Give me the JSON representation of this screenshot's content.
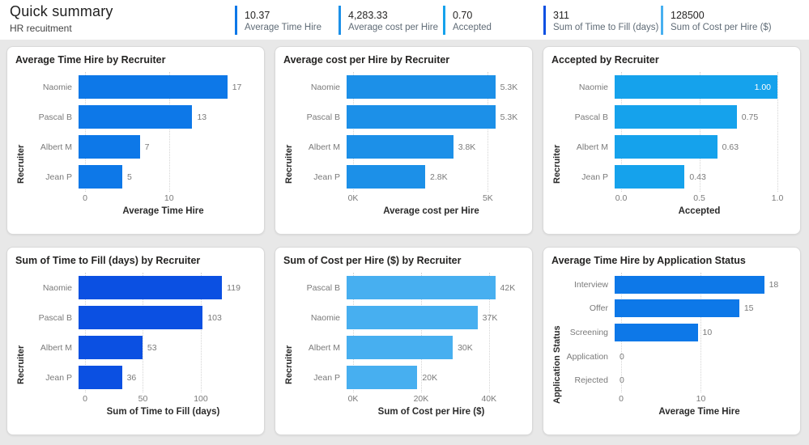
{
  "header": {
    "title": "Quick summary",
    "subtitle": "HR recuitment"
  },
  "kpis": [
    {
      "value": "10.37",
      "label": "Average Time Hire",
      "accent": "#0d78e8"
    },
    {
      "value": "4,283.33",
      "label": "Average cost per Hire",
      "accent": "#1c90e8"
    },
    {
      "value": "0.70",
      "label": "Accepted",
      "accent": "#15a2ec"
    },
    {
      "value": "311",
      "label": "Sum of Time to Fill (days)",
      "accent": "#0b50e2"
    },
    {
      "value": "128500",
      "label": "Sum of Cost per Hire ($)",
      "accent": "#47aff0"
    }
  ],
  "chart_data": [
    {
      "type": "bar",
      "orientation": "horizontal",
      "title": "Average Time Hire by Recruiter",
      "ylabel": "Recruiter",
      "xlabel": "Average Time Hire",
      "categories": [
        "Naomie",
        "Pascal B",
        "Albert M",
        "Jean P"
      ],
      "values": [
        17,
        13,
        7,
        5
      ],
      "labels": [
        "17",
        "13",
        "7",
        "5"
      ],
      "inside_labels": [],
      "axis_max": 18.6,
      "ticks": [
        {
          "value": 0,
          "label": "0"
        },
        {
          "value": 10,
          "label": "10"
        }
      ],
      "color": "#0d78e8",
      "grid": true,
      "legend": "none"
    },
    {
      "type": "bar",
      "orientation": "horizontal",
      "title": "Average cost per Hire by Recruiter",
      "ylabel": "Recruiter",
      "xlabel": "Average cost per Hire",
      "categories": [
        "Naomie",
        "Pascal B",
        "Albert M",
        "Jean P"
      ],
      "values": [
        5300,
        5300,
        3800,
        2800
      ],
      "labels": [
        "5.3K",
        "5.3K",
        "3.8K",
        "2.8K"
      ],
      "inside_labels": [],
      "axis_max": 5800,
      "ticks": [
        {
          "value": 0,
          "label": "0K"
        },
        {
          "value": 5000,
          "label": "5K"
        }
      ],
      "color": "#1c90e8",
      "grid": true,
      "legend": "none"
    },
    {
      "type": "bar",
      "orientation": "horizontal",
      "title": "Accepted by Recruiter",
      "ylabel": "Recruiter",
      "xlabel": "Accepted",
      "categories": [
        "Naomie",
        "Pascal B",
        "Albert M",
        "Jean P"
      ],
      "values": [
        1.0,
        0.75,
        0.63,
        0.43
      ],
      "labels": [
        "1.00",
        "0.75",
        "0.63",
        "0.43"
      ],
      "inside_labels": [
        0
      ],
      "axis_max": 1.0,
      "ticks": [
        {
          "value": 0,
          "label": "0.0"
        },
        {
          "value": 0.5,
          "label": "0.5"
        },
        {
          "value": 1.0,
          "label": "1.0"
        }
      ],
      "color": "#15a2ec",
      "grid": true,
      "legend": "none"
    },
    {
      "type": "bar",
      "orientation": "horizontal",
      "title": "Sum of Time to Fill (days) by Recruiter",
      "ylabel": "Recruiter",
      "xlabel": "Sum of Time to Fill (days)",
      "categories": [
        "Naomie",
        "Pascal B",
        "Albert M",
        "Jean P"
      ],
      "values": [
        119,
        103,
        53,
        36
      ],
      "labels": [
        "119",
        "103",
        "53",
        "36"
      ],
      "inside_labels": [],
      "axis_max": 135,
      "ticks": [
        {
          "value": 0,
          "label": "0"
        },
        {
          "value": 50,
          "label": "50"
        },
        {
          "value": 100,
          "label": "100"
        }
      ],
      "color": "#0b50e2",
      "grid": true,
      "legend": "none"
    },
    {
      "type": "bar",
      "orientation": "horizontal",
      "title": "Sum of Cost per Hire ($) by Recruiter",
      "ylabel": "Recruiter",
      "xlabel": "Sum of Cost per Hire ($)",
      "categories": [
        "Pascal B",
        "Naomie",
        "Albert M",
        "Jean P"
      ],
      "values": [
        42000,
        37000,
        30000,
        20000
      ],
      "labels": [
        "42K",
        "37K",
        "30K",
        "20K"
      ],
      "inside_labels": [],
      "axis_max": 46000,
      "ticks": [
        {
          "value": 0,
          "label": "0K"
        },
        {
          "value": 20000,
          "label": "20K"
        },
        {
          "value": 40000,
          "label": "40K"
        }
      ],
      "color": "#47aff0",
      "grid": true,
      "legend": "none"
    },
    {
      "type": "bar",
      "orientation": "horizontal",
      "title": "Average Time Hire by Application Status",
      "ylabel": "Application Status",
      "xlabel": "Average Time Hire",
      "categories": [
        "Interview",
        "Offer",
        "Screening",
        "Application",
        "Rejected"
      ],
      "values": [
        18,
        15,
        10,
        0,
        0
      ],
      "labels": [
        "18",
        "15",
        "10",
        "0",
        "0"
      ],
      "inside_labels": [],
      "axis_max": 19.6,
      "ticks": [
        {
          "value": 0,
          "label": "0"
        },
        {
          "value": 10,
          "label": "10"
        }
      ],
      "color": "#0d78e8",
      "grid": true,
      "legend": "none"
    }
  ]
}
